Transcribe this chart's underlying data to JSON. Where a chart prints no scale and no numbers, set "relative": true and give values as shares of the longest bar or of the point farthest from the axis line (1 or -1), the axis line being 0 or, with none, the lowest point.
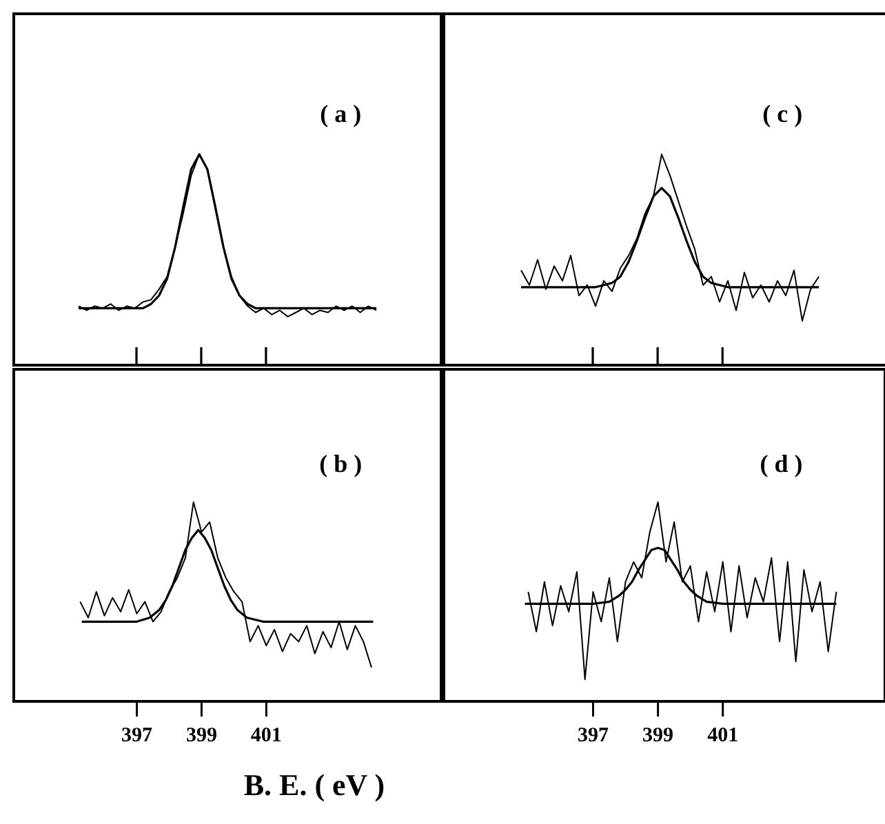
{
  "chart_data": [
    {
      "type": "line",
      "relative": true,
      "marker": "none",
      "tick_labels": false,
      "annotations": [
        "( a )"
      ],
      "categories": [
        null,
        null,
        null,
        null,
        null,
        null,
        null,
        null,
        null,
        null,
        null,
        null,
        null,
        null,
        null,
        null,
        null,
        null,
        null,
        null,
        null,
        null,
        null,
        null,
        null,
        null,
        null,
        null,
        null,
        null,
        null,
        null,
        null,
        null,
        null,
        null,
        null,
        null
      ],
      "series": [
        {
          "color": "#000000",
          "values": [
            0.28,
            0.26,
            0.28,
            0.27,
            0.29,
            0.26,
            0.28,
            0.27,
            0.3,
            0.31,
            0.36,
            0.42,
            0.56,
            0.72,
            0.9,
            1.0,
            0.93,
            0.74,
            0.56,
            0.42,
            0.33,
            0.28,
            0.25,
            0.27,
            0.24,
            0.26,
            0.23,
            0.25,
            0.27,
            0.24,
            0.26,
            0.25,
            0.28,
            0.26,
            0.28,
            0.25,
            0.28,
            0.26
          ]
        },
        {
          "color": "#000000",
          "values": [
            0.27,
            0.27,
            0.27,
            0.27,
            0.27,
            0.27,
            0.27,
            0.27,
            0.27,
            0.29,
            0.33,
            0.41,
            0.56,
            0.75,
            0.93,
            1,
            0.93,
            0.75,
            0.56,
            0.41,
            0.33,
            0.29,
            0.27,
            0.27,
            0.27,
            0.27,
            0.27,
            0.27,
            0.27,
            0.27,
            0.27,
            0.27,
            0.27,
            0.27,
            0.27,
            0.27,
            0.27,
            0.27
          ]
        }
      ]
    },
    {
      "type": "line",
      "relative": true,
      "marker": "none",
      "tick_labels": false,
      "annotations": [
        "( c )"
      ],
      "categories": [
        null,
        null,
        null,
        null,
        null,
        null,
        null,
        null,
        null,
        null,
        null,
        null,
        null,
        null,
        null,
        null,
        null,
        null,
        null,
        null,
        null,
        null,
        null,
        null,
        null,
        null,
        null,
        null,
        null,
        null,
        null,
        null,
        null,
        null,
        null,
        null,
        null
      ],
      "series": [
        {
          "color": "#000000",
          "values": [
            0.45,
            0.38,
            0.5,
            0.36,
            0.47,
            0.4,
            0.52,
            0.33,
            0.38,
            0.28,
            0.4,
            0.35,
            0.46,
            0.52,
            0.6,
            0.72,
            0.8,
            1.0,
            0.9,
            0.78,
            0.66,
            0.55,
            0.38,
            0.42,
            0.3,
            0.4,
            0.26,
            0.44,
            0.32,
            0.38,
            0.3,
            0.4,
            0.33,
            0.45,
            0.21,
            0.36,
            0.42
          ]
        },
        {
          "color": "#000000",
          "values": [
            0.37,
            0.37,
            0.37,
            0.37,
            0.37,
            0.37,
            0.37,
            0.37,
            0.37,
            0.37,
            0.38,
            0.39,
            0.42,
            0.49,
            0.59,
            0.7,
            0.8,
            0.84,
            0.8,
            0.7,
            0.59,
            0.49,
            0.42,
            0.39,
            0.38,
            0.37,
            0.37,
            0.37,
            0.37,
            0.37,
            0.37,
            0.37,
            0.37,
            0.37,
            0.37,
            0.37,
            0.37
          ]
        }
      ]
    },
    {
      "type": "line",
      "relative": true,
      "marker": "none",
      "xlabel": "B. E. ( eV )",
      "annotations": [
        "( b )"
      ],
      "xlim": [
        393.2,
        406.4
      ],
      "xticks": [
        397,
        399,
        401
      ],
      "series": [
        {
          "color": "#000000",
          "x": [
            395.25,
            395.5,
            395.75,
            396,
            396.25,
            396.5,
            396.75,
            397,
            397.25,
            397.5,
            397.75,
            398,
            398.25,
            398.5,
            398.75,
            399,
            399.25,
            399.5,
            399.75,
            400,
            400.25,
            400.5,
            400.75,
            401,
            401.25,
            401.5,
            401.75,
            402,
            402.25,
            402.5,
            402.75,
            403,
            403.25,
            403.5,
            403.75,
            404,
            404.25
          ],
          "values": [
            0.5,
            0.42,
            0.55,
            0.43,
            0.52,
            0.45,
            0.56,
            0.44,
            0.5,
            0.4,
            0.45,
            0.55,
            0.62,
            0.72,
            1.0,
            0.85,
            0.9,
            0.72,
            0.62,
            0.55,
            0.5,
            0.3,
            0.38,
            0.28,
            0.36,
            0.25,
            0.34,
            0.3,
            0.38,
            0.24,
            0.35,
            0.27,
            0.4,
            0.26,
            0.38,
            0.3,
            0.17
          ]
        },
        {
          "color": "#000000",
          "x": [
            395.3,
            397,
            397.4,
            397.7,
            397.9,
            398.1,
            398.3,
            398.5,
            398.7,
            398.9,
            399.1,
            399.3,
            399.5,
            399.7,
            399.9,
            400.1,
            400.4,
            400.9,
            404.3
          ],
          "values": [
            0.4,
            0.4,
            0.42,
            0.46,
            0.51,
            0.58,
            0.67,
            0.76,
            0.82,
            0.86,
            0.82,
            0.76,
            0.67,
            0.58,
            0.51,
            0.46,
            0.42,
            0.4,
            0.4
          ]
        }
      ]
    },
    {
      "type": "line",
      "relative": true,
      "marker": "none",
      "annotations": [
        "( d )"
      ],
      "xlim": [
        392.4,
        406.0
      ],
      "xticks": [
        397,
        399,
        401
      ],
      "series": [
        {
          "color": "#000000",
          "x": [
            395,
            395.25,
            395.5,
            395.75,
            396,
            396.25,
            396.5,
            396.75,
            397,
            397.25,
            397.5,
            397.75,
            398,
            398.25,
            398.5,
            398.75,
            399,
            399.25,
            399.5,
            399.75,
            400,
            400.25,
            400.5,
            400.75,
            401,
            401.25,
            401.5,
            401.75,
            402,
            402.25,
            402.5,
            402.75,
            403,
            403.25,
            403.5,
            403.75,
            404,
            404.25,
            404.5
          ],
          "values": [
            0.55,
            0.35,
            0.6,
            0.38,
            0.58,
            0.45,
            0.65,
            0.11,
            0.55,
            0.4,
            0.62,
            0.3,
            0.6,
            0.7,
            0.62,
            0.85,
            1.0,
            0.7,
            0.9,
            0.6,
            0.68,
            0.4,
            0.65,
            0.45,
            0.7,
            0.35,
            0.68,
            0.42,
            0.62,
            0.5,
            0.72,
            0.3,
            0.7,
            0.2,
            0.66,
            0.45,
            0.6,
            0.25,
            0.55
          ]
        },
        {
          "color": "#000000",
          "x": [
            394.9,
            397,
            397.5,
            397.8,
            398,
            398.2,
            398.4,
            398.6,
            398.8,
            399,
            399.2,
            399.4,
            399.6,
            399.8,
            400,
            400.2,
            400.5,
            401,
            404.5
          ],
          "values": [
            0.49,
            0.49,
            0.5,
            0.53,
            0.56,
            0.6,
            0.66,
            0.71,
            0.76,
            0.77,
            0.76,
            0.71,
            0.66,
            0.6,
            0.56,
            0.53,
            0.5,
            0.49,
            0.49
          ]
        }
      ]
    }
  ]
}
